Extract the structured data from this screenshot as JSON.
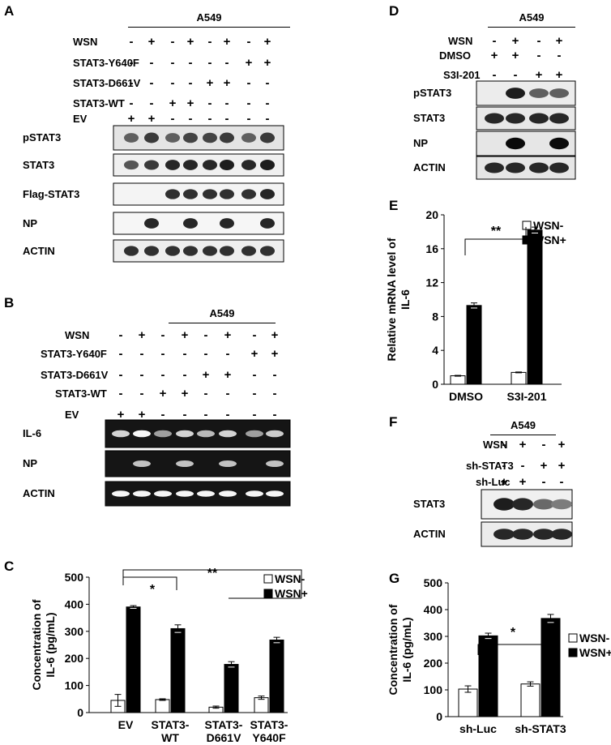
{
  "panels": {
    "A": {
      "letter": "A",
      "cell_line": "A549",
      "rows": [
        {
          "label": "WSN",
          "values": [
            "-",
            "+",
            "-",
            "+",
            "-",
            "+",
            "-",
            "+"
          ]
        },
        {
          "label": "STAT3-Y640F",
          "values": [
            "-",
            "-",
            "-",
            "-",
            "-",
            "-",
            "+",
            "+"
          ]
        },
        {
          "label": "STAT3-D661V",
          "values": [
            "-",
            "-",
            "-",
            "-",
            "+",
            "+",
            "-",
            "-"
          ]
        },
        {
          "label": "STAT3-WT",
          "values": [
            "-",
            "-",
            "+",
            "+",
            "-",
            "-",
            "-",
            "-"
          ]
        },
        {
          "label": "EV",
          "values": [
            "+",
            "+",
            "-",
            "-",
            "-",
            "-",
            "-",
            "-"
          ]
        }
      ],
      "blots": [
        {
          "label": "pSTAT3",
          "bg": "#e4e4e4",
          "lanes": [
            0.55,
            0.75,
            0.55,
            0.7,
            0.7,
            0.75,
            0.55,
            0.75
          ]
        },
        {
          "label": "STAT3",
          "bg": "#f0f0f0",
          "lanes": [
            0.6,
            0.75,
            0.85,
            0.85,
            0.85,
            0.9,
            0.85,
            0.9
          ]
        },
        {
          "label": "Flag-STAT3",
          "bg": "#f4f4f4",
          "lanes": [
            0,
            0,
            0.8,
            0.8,
            0.8,
            0.8,
            0.8,
            0.85
          ]
        },
        {
          "label": "NP",
          "bg": "#f6f6f6",
          "lanes": [
            0,
            0.85,
            0,
            0.85,
            0,
            0.85,
            0,
            0.85
          ]
        },
        {
          "label": "ACTIN",
          "bg": "#eeeeee",
          "lanes": [
            0.8,
            0.8,
            0.8,
            0.8,
            0.8,
            0.8,
            0.8,
            0.8
          ]
        }
      ]
    },
    "B": {
      "letter": "B",
      "cell_line": "A549",
      "rows": [
        {
          "label": "WSN",
          "values": [
            "-",
            "+",
            "-",
            "+",
            "-",
            "+",
            "-",
            "+"
          ]
        },
        {
          "label": "STAT3-Y640F",
          "values": [
            "-",
            "-",
            "-",
            "-",
            "-",
            "-",
            "+",
            "+"
          ]
        },
        {
          "label": "STAT3-D661V",
          "values": [
            "-",
            "-",
            "-",
            "-",
            "+",
            "+",
            "-",
            "-"
          ]
        },
        {
          "label": "STAT3-WT",
          "values": [
            "-",
            "-",
            "+",
            "+",
            "-",
            "-",
            "-",
            "-"
          ]
        },
        {
          "label": "EV",
          "values": [
            "+",
            "+",
            "-",
            "-",
            "-",
            "-",
            "-",
            "-"
          ]
        }
      ],
      "gels": [
        {
          "label": "IL-6",
          "lanes": [
            0.75,
            0.95,
            0.45,
            0.75,
            0.6,
            0.75,
            0.45,
            0.7
          ]
        },
        {
          "label": "NP",
          "lanes": [
            0,
            0.65,
            0,
            0.65,
            0,
            0.65,
            0,
            0.65
          ]
        },
        {
          "label": "ACTIN",
          "lanes": [
            0.95,
            0.95,
            0.95,
            0.95,
            0.95,
            0.95,
            0.95,
            0.95
          ]
        }
      ]
    },
    "C": {
      "letter": "C"
    },
    "D": {
      "letter": "D",
      "cell_line": "A549",
      "rows": [
        {
          "label": "WSN",
          "values": [
            "-",
            "+",
            "-",
            "+"
          ]
        },
        {
          "label": "DMSO",
          "values": [
            "+",
            "+",
            "-",
            "-"
          ]
        },
        {
          "label": "S3I-201",
          "values": [
            "-",
            "-",
            "+",
            "+"
          ]
        }
      ],
      "blots": [
        {
          "label": "pSTAT3",
          "bg": "#ececec",
          "lanes": [
            0,
            0.9,
            0.55,
            0.55
          ]
        },
        {
          "label": "STAT3",
          "bg": "#e8e8e8",
          "lanes": [
            0.85,
            0.85,
            0.85,
            0.85
          ]
        },
        {
          "label": "NP",
          "bg": "#e6e6e6",
          "lanes": [
            0,
            1,
            0,
            1
          ]
        },
        {
          "label": "ACTIN",
          "bg": "#e6e6e6",
          "lanes": [
            0.85,
            0.85,
            0.85,
            0.85
          ]
        }
      ]
    },
    "E": {
      "letter": "E"
    },
    "F": {
      "letter": "F",
      "cell_line": "A549",
      "rows": [
        {
          "label": "WSN",
          "values": [
            "-",
            "+",
            "-",
            "+"
          ]
        },
        {
          "label": "sh-STAT3",
          "values": [
            "-",
            "-",
            "+",
            "+"
          ]
        },
        {
          "label": "sh-Luc",
          "values": [
            "+",
            "+",
            "-",
            "-"
          ]
        }
      ],
      "blots": [
        {
          "label": "STAT3",
          "bg": "#f0f0f0",
          "lanes": [
            0.9,
            0.85,
            0.5,
            0.4
          ]
        },
        {
          "label": "ACTIN",
          "bg": "#ececec",
          "lanes": [
            0.85,
            0.85,
            0.85,
            0.85
          ]
        }
      ]
    },
    "G": {
      "letter": "G"
    }
  },
  "chart_data": [
    {
      "panel": "C",
      "type": "bar",
      "categories": [
        "EV",
        "STAT3-\nWT",
        "STAT3-\nD661V",
        "STAT3-\nY640F"
      ],
      "ylabel": "Concentration of\nIL-6 (pg/mL)",
      "ylim": [
        0,
        500
      ],
      "yticks": [
        0,
        100,
        200,
        300,
        400,
        500
      ],
      "series": [
        {
          "name": "WSN-",
          "color": "#ffffff",
          "values": [
            45,
            48,
            20,
            55
          ],
          "errors": [
            22,
            3,
            4,
            6
          ]
        },
        {
          "name": "WSN+",
          "color": "#000000",
          "values": [
            390,
            310,
            178,
            268
          ],
          "errors": [
            5,
            14,
            10,
            10
          ]
        }
      ],
      "annotations": [
        "*",
        "**"
      ],
      "legend": "top-right"
    },
    {
      "panel": "E",
      "type": "bar",
      "categories": [
        "DMSO",
        "S3I-201"
      ],
      "ylabel": "Relative mRNA level of\nIL-6",
      "ylim": [
        0,
        20
      ],
      "yticks": [
        0,
        4,
        8,
        12,
        16,
        20
      ],
      "series": [
        {
          "name": "WSN-",
          "color": "#ffffff",
          "values": [
            1.0,
            1.4
          ],
          "errors": [
            0.05,
            0.05
          ]
        },
        {
          "name": "WSN+",
          "color": "#000000",
          "values": [
            9.3,
            18.2
          ],
          "errors": [
            0.3,
            0.35
          ]
        }
      ],
      "annotations": [
        "**"
      ],
      "legend": "top-right"
    },
    {
      "panel": "G",
      "type": "bar",
      "categories": [
        "sh-Luc",
        "sh-STAT3"
      ],
      "ylabel": "Concentration of\nIL-6 (pg/mL)",
      "ylim": [
        0,
        500
      ],
      "yticks": [
        0,
        100,
        200,
        300,
        400,
        500
      ],
      "series": [
        {
          "name": "WSN-",
          "color": "#ffffff",
          "values": [
            103,
            122
          ],
          "errors": [
            12,
            8
          ]
        },
        {
          "name": "WSN+",
          "color": "#000000",
          "values": [
            302,
            367
          ],
          "errors": [
            10,
            15
          ]
        }
      ],
      "annotations": [
        "*"
      ],
      "legend": "top-right"
    }
  ]
}
